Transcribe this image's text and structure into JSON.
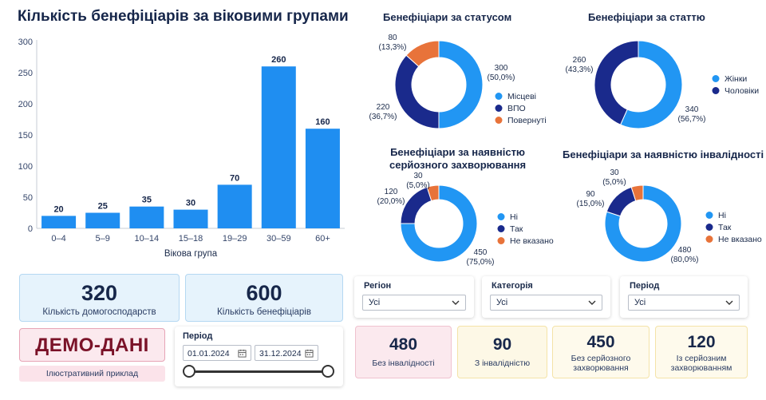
{
  "main_title": "Кількість бенефіціарів за віковими групами",
  "bar_chart": {
    "y_ticks": [
      "0",
      "50",
      "100",
      "150",
      "200",
      "250",
      "300"
    ],
    "xlabel": "Вікова група"
  },
  "donut_status": {
    "title": "Бенефіціари за статусом",
    "labels": [
      "80\n(13,3%)",
      "300\n(50,0%)",
      "220\n(36,7%)"
    ],
    "legend": [
      "Місцеві",
      "ВПО",
      "Повернуті"
    ]
  },
  "donut_gender": {
    "title": "Бенефіціари за статтю",
    "labels": [
      "260\n(43,3%)",
      "340\n(56,7%)"
    ],
    "legend": [
      "Жінки",
      "Чоловіки"
    ]
  },
  "donut_disease": {
    "title_line1": "Бенефіціари за наявністю",
    "title_line2": "серйозного захворювання",
    "labels": [
      "30\n(5,0%)",
      "120\n(20,0%)",
      "450\n(75,0%)"
    ],
    "legend": [
      "Ні",
      "Так",
      "Не вказано"
    ]
  },
  "donut_disability": {
    "title": "Бенефіціари за наявністю інвалідності",
    "labels": [
      "30\n(5,0%)",
      "90\n(15,0%)",
      "480\n(80,0%)"
    ],
    "legend": [
      "Ні",
      "Так",
      "Не вказано"
    ]
  },
  "kpi": {
    "households": {
      "value": "320",
      "label": "Кількість домогосподарств"
    },
    "beneficiaries": {
      "value": "600",
      "label": "Кількість бенефіціарів"
    },
    "demo": {
      "value": "ДЕМО-ДАНІ",
      "label": "Ілюстративний приклад"
    },
    "no_disability": {
      "value": "480",
      "label": "Без інвалідності"
    },
    "with_disability": {
      "value": "90",
      "label": "З інвалідністю"
    },
    "no_disease": {
      "value": "450",
      "label": "Без серйозного захворювання"
    },
    "with_disease": {
      "value": "120",
      "label": "Із серйозним захворюванням"
    }
  },
  "period": {
    "label": "Період",
    "start": "01.01.2024",
    "end": "31.12.2024"
  },
  "filters": {
    "region": {
      "label": "Регіон",
      "value": "Усі"
    },
    "category": {
      "label": "Категорія",
      "value": "Усі"
    },
    "period": {
      "label": "Період",
      "value": "Усі"
    }
  },
  "colors": {
    "bar": "#1f8ef1",
    "light_blue": "#2196f3",
    "dark_blue": "#1a2a8c",
    "orange": "#e8733a"
  },
  "chart_data": [
    {
      "type": "bar",
      "title": "Кількість бенефіціарів за віковими групами",
      "xlabel": "Вікова група",
      "ylabel": "",
      "categories": [
        "0–4",
        "5–9",
        "10–14",
        "15–18",
        "19–29",
        "30–59",
        "60+"
      ],
      "values": [
        20,
        25,
        35,
        30,
        70,
        260,
        160
      ],
      "ylim": [
        0,
        300
      ],
      "grid": false
    },
    {
      "type": "pie",
      "title": "Бенефіціари за статусом",
      "categories": [
        "Місцеві",
        "ВПО",
        "Повернуті"
      ],
      "values": [
        300,
        220,
        80
      ]
    },
    {
      "type": "pie",
      "title": "Бенефіціари за статтю",
      "categories": [
        "Жінки",
        "Чоловіки"
      ],
      "values": [
        340,
        260
      ]
    },
    {
      "type": "pie",
      "title": "Бенефіціари за наявністю серйозного захворювання",
      "categories": [
        "Ні",
        "Так",
        "Не вказано"
      ],
      "values": [
        450,
        120,
        30
      ]
    },
    {
      "type": "pie",
      "title": "Бенефіціари за наявністю інвалідності",
      "categories": [
        "Ні",
        "Так",
        "Не вказано"
      ],
      "values": [
        480,
        90,
        30
      ]
    }
  ]
}
